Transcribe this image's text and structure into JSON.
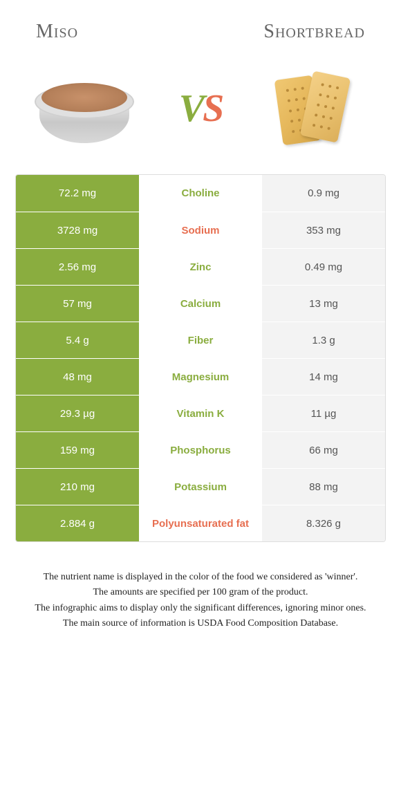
{
  "header": {
    "food1_title": "Miso",
    "food2_title": "Shortbread"
  },
  "vs": {
    "v": "V",
    "s": "S"
  },
  "colors": {
    "winner_green": "#8aad3f",
    "winner_orange": "#e76f51",
    "loser_bg": "#f3f3f3",
    "loser_text": "#555555",
    "title_text": "#666666",
    "border": "#dddddd",
    "background": "#ffffff"
  },
  "table": {
    "type": "comparison-table",
    "rows": [
      {
        "left": "72.2 mg",
        "label": "Choline",
        "right": "0.9 mg",
        "winner": "left"
      },
      {
        "left": "3728 mg",
        "label": "Sodium",
        "right": "353 mg",
        "winner": "right"
      },
      {
        "left": "2.56 mg",
        "label": "Zinc",
        "right": "0.49 mg",
        "winner": "left"
      },
      {
        "left": "57 mg",
        "label": "Calcium",
        "right": "13 mg",
        "winner": "left"
      },
      {
        "left": "5.4 g",
        "label": "Fiber",
        "right": "1.3 g",
        "winner": "left"
      },
      {
        "left": "48 mg",
        "label": "Magnesium",
        "right": "14 mg",
        "winner": "left"
      },
      {
        "left": "29.3 µg",
        "label": "Vitamin K",
        "right": "11 µg",
        "winner": "left"
      },
      {
        "left": "159 mg",
        "label": "Phosphorus",
        "right": "66 mg",
        "winner": "left"
      },
      {
        "left": "210 mg",
        "label": "Potassium",
        "right": "88 mg",
        "winner": "left"
      },
      {
        "left": "2.884 g",
        "label": "Polyunsaturated fat",
        "right": "8.326 g",
        "winner": "right"
      }
    ]
  },
  "footer": {
    "line1": "The nutrient name is displayed in the color of the food we considered as 'winner'.",
    "line2": "The amounts are specified per 100 gram of the product.",
    "line3": "The infographic aims to display only the significant differences, ignoring minor ones.",
    "line4": "The main source of information is USDA Food Composition Database."
  }
}
